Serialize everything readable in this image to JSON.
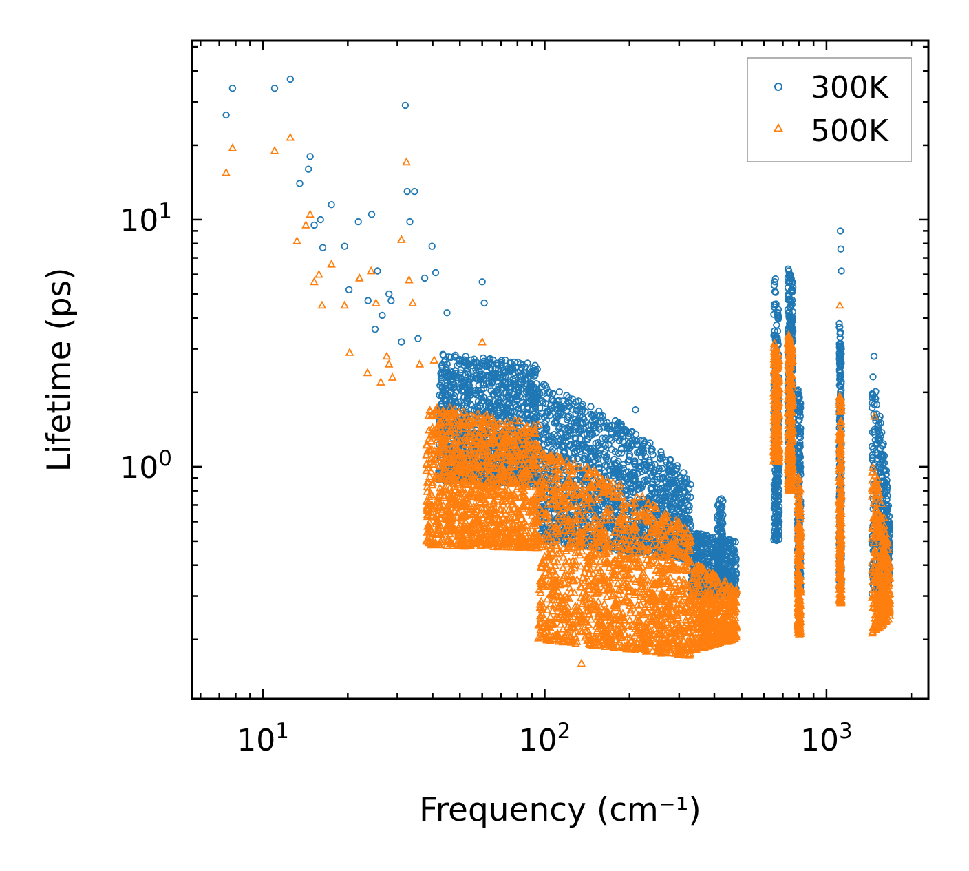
{
  "chart_data": {
    "type": "scatter",
    "title": "",
    "xlabel": "Frequency (cm⁻¹)",
    "ylabel": "Lifetime (ps)",
    "xscale": "log",
    "yscale": "log",
    "xlim": [
      5.6,
      2300
    ],
    "ylim": [
      0.115,
      53
    ],
    "x_ticks": [
      {
        "value": 10,
        "base": "10",
        "exp": "1"
      },
      {
        "value": 100,
        "base": "10",
        "exp": "2"
      },
      {
        "value": 1000,
        "base": "10",
        "exp": "3"
      }
    ],
    "y_ticks": [
      {
        "value": 1,
        "base": "10",
        "exp": "0"
      },
      {
        "value": 10,
        "base": "10",
        "exp": "1"
      }
    ],
    "legend_position": "top-right",
    "series": [
      {
        "name": "300K",
        "marker": "circle",
        "color": "#1f77b4",
        "anchor_points": [
          [
            7.4,
            26.5
          ],
          [
            7.8,
            34
          ],
          [
            11,
            34
          ],
          [
            12.5,
            37
          ],
          [
            13.5,
            14
          ],
          [
            14.5,
            16
          ],
          [
            14.7,
            18
          ],
          [
            15.2,
            9.5
          ],
          [
            16,
            10
          ],
          [
            16.3,
            7.7
          ],
          [
            17.5,
            11.5
          ],
          [
            19.5,
            7.8
          ],
          [
            20.2,
            5.2
          ],
          [
            21.8,
            9.8
          ],
          [
            23.6,
            4.7
          ],
          [
            24.3,
            10.5
          ],
          [
            25,
            3.6
          ],
          [
            25.5,
            6.2
          ],
          [
            26.5,
            4.1
          ],
          [
            28,
            5
          ],
          [
            28.5,
            4.7
          ],
          [
            31,
            3.2
          ],
          [
            32,
            29
          ],
          [
            32.5,
            13
          ],
          [
            33.2,
            9.8
          ],
          [
            34.5,
            13
          ],
          [
            35.5,
            3.3
          ],
          [
            37.5,
            5.8
          ],
          [
            39.8,
            7.8
          ],
          [
            41,
            6.1
          ],
          [
            45,
            4.2
          ],
          [
            60,
            5.6
          ],
          [
            61,
            4.6
          ],
          [
            210,
            1.7
          ],
          [
            1120,
            9
          ],
          [
            1125,
            7.6
          ],
          [
            1130,
            6.2
          ],
          [
            1475,
            2.8
          ]
        ],
        "bands": [
          {
            "x": [
              42,
              95
            ],
            "y_low": [
              0.88,
              0.85
            ],
            "y_high": [
              2.9,
              2.6
            ],
            "count": 1300
          },
          {
            "x": [
              95,
              330
            ],
            "y_low": [
              0.5,
              0.42
            ],
            "y_high": [
              2.2,
              0.9
            ],
            "count": 1500
          },
          {
            "x": [
              330,
              480
            ],
            "y_low": [
              0.3,
              0.3
            ],
            "y_high": [
              0.55,
              0.5
            ],
            "count": 500
          },
          {
            "x": [
              410,
              430
            ],
            "y_low": [
              0.35,
              0.35
            ],
            "y_high": [
              0.75,
              0.75
            ],
            "count": 120
          },
          {
            "x": [
              650,
              680
            ],
            "y_low": [
              0.5,
              0.5
            ],
            "y_high": [
              6.5,
              4
            ],
            "count": 250
          },
          {
            "x": [
              730,
              760
            ],
            "y_low": [
              0.8,
              0.8
            ],
            "y_high": [
              7,
              5.5
            ],
            "count": 300
          },
          {
            "x": [
              790,
              810
            ],
            "y_low": [
              0.32,
              0.32
            ],
            "y_high": [
              2.1,
              1.8
            ],
            "count": 200
          },
          {
            "x": [
              1110,
              1130
            ],
            "y_low": [
              0.32,
              0.32
            ],
            "y_high": [
              4,
              3
            ],
            "count": 250
          },
          {
            "x": [
              1450,
              1680
            ],
            "y_low": [
              0.3,
              0.35
            ],
            "y_high": [
              2.5,
              0.6
            ],
            "count": 350
          }
        ]
      },
      {
        "name": "500K",
        "marker": "triangle",
        "color": "#ff7f0e",
        "anchor_points": [
          [
            7.4,
            15.5
          ],
          [
            7.8,
            19.5
          ],
          [
            11,
            19
          ],
          [
            12.5,
            21.5
          ],
          [
            13.2,
            8.2
          ],
          [
            14.2,
            9.5
          ],
          [
            14.7,
            10.5
          ],
          [
            15.2,
            5.6
          ],
          [
            15.8,
            6
          ],
          [
            16.2,
            4.5
          ],
          [
            17.5,
            6.6
          ],
          [
            19.5,
            4.5
          ],
          [
            20.3,
            2.9
          ],
          [
            22,
            5.8
          ],
          [
            23.5,
            2.4
          ],
          [
            24.2,
            6.2
          ],
          [
            25.2,
            4.6
          ],
          [
            26.2,
            2.2
          ],
          [
            27.5,
            2.8
          ],
          [
            28,
            2.6
          ],
          [
            28.8,
            2.3
          ],
          [
            31,
            8.3
          ],
          [
            32.3,
            17.1
          ],
          [
            33,
            5.7
          ],
          [
            34,
            4.6
          ],
          [
            36,
            2.6
          ],
          [
            40.5,
            2.7
          ],
          [
            60,
            3.2
          ],
          [
            135,
            0.16
          ],
          [
            1115,
            4.5
          ],
          [
            1480,
            1.6
          ]
        ],
        "bands": [
          {
            "x": [
              38,
              95
            ],
            "y_low": [
              0.48,
              0.47
            ],
            "y_high": [
              1.8,
              1.5
            ],
            "count": 1200
          },
          {
            "x": [
              95,
              330
            ],
            "y_low": [
              0.2,
              0.17
            ],
            "y_high": [
              1.2,
              0.55
            ],
            "count": 1500
          },
          {
            "x": [
              330,
              480
            ],
            "y_low": [
              0.18,
              0.2
            ],
            "y_high": [
              0.42,
              0.32
            ],
            "count": 450
          },
          {
            "x": [
              650,
              680
            ],
            "y_low": [
              1.05,
              1.05
            ],
            "y_high": [
              3.4,
              2.8
            ],
            "count": 220
          },
          {
            "x": [
              730,
              760
            ],
            "y_low": [
              0.8,
              0.8
            ],
            "y_high": [
              3.6,
              3.0
            ],
            "count": 260
          },
          {
            "x": [
              790,
              810
            ],
            "y_low": [
              0.21,
              0.21
            ],
            "y_high": [
              0.95,
              0.85
            ],
            "count": 180
          },
          {
            "x": [
              1110,
              1130
            ],
            "y_low": [
              0.28,
              0.28
            ],
            "y_high": [
              2.2,
              1.8
            ],
            "count": 220
          },
          {
            "x": [
              1450,
              1680
            ],
            "y_low": [
              0.21,
              0.24
            ],
            "y_high": [
              1.1,
              0.4
            ],
            "count": 320
          }
        ]
      }
    ]
  }
}
